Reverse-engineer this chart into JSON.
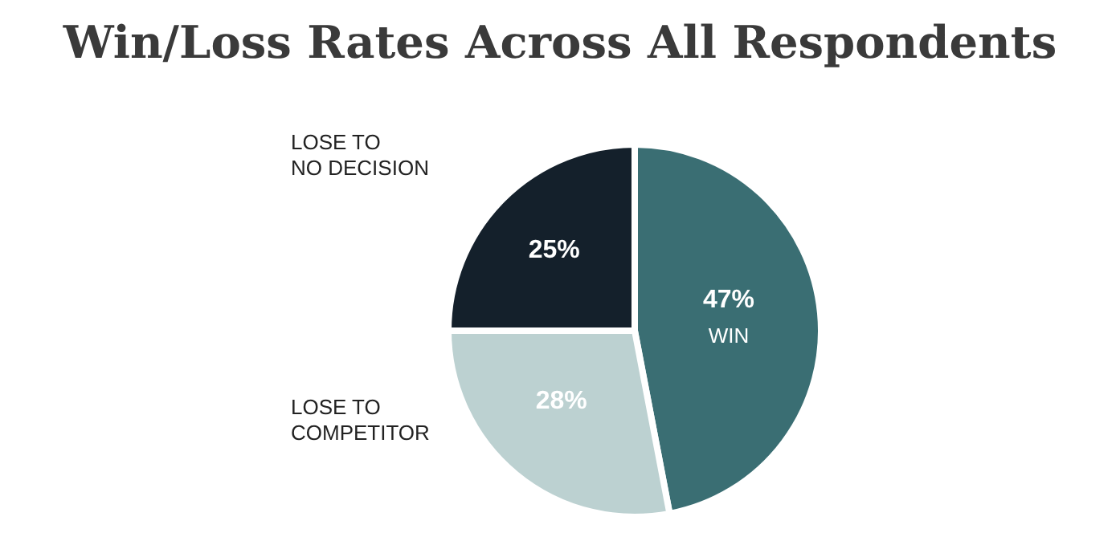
{
  "chart_data": {
    "type": "pie",
    "title": "Win/Loss Rates Across All Respondents",
    "categories": [
      "WIN",
      "LOSE TO\nCOMPETITOR",
      "LOSE TO\nNO DECISION"
    ],
    "values": [
      47,
      28,
      25
    ],
    "value_labels": [
      "47%",
      "28%",
      "25%"
    ],
    "colors": [
      "#3a6e73",
      "#bcd1d1",
      "#14202b"
    ]
  }
}
